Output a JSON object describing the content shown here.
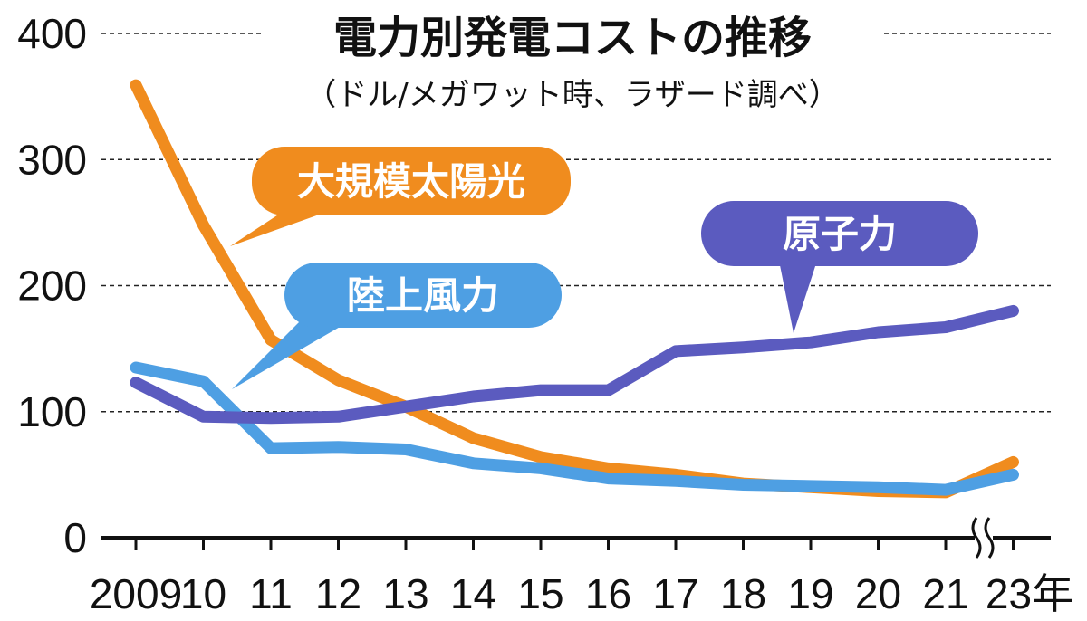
{
  "chart_data": {
    "type": "line",
    "title": "電力別発電コストの推移",
    "subtitle": "（ドル/メガワット時、ラザード調べ）",
    "categories": [
      "2009",
      "10",
      "11",
      "12",
      "13",
      "14",
      "15",
      "16",
      "17",
      "18",
      "19",
      "20",
      "21",
      "23年"
    ],
    "ylim": [
      0,
      400
    ],
    "yticks": [
      "0",
      "100",
      "200",
      "300",
      "400"
    ],
    "grid": true,
    "axis_break": "between 21 and 23年",
    "series": [
      {
        "name": "大規模太陽光",
        "color": "#f08c1e",
        "values": [
          359,
          248,
          157,
          125,
          104,
          79,
          64,
          55,
          50,
          43,
          40,
          37,
          36,
          60
        ]
      },
      {
        "name": "陸上風力",
        "color": "#4e9fe3",
        "values": [
          135,
          124,
          71,
          72,
          70,
          59,
          55,
          47,
          45,
          42,
          41,
          40,
          38,
          50
        ]
      },
      {
        "name": "原子力",
        "color": "#5b5bbf",
        "values": [
          123,
          96,
          95,
          96,
          104,
          112,
          117,
          117,
          148,
          151,
          155,
          163,
          167,
          180
        ]
      }
    ]
  }
}
